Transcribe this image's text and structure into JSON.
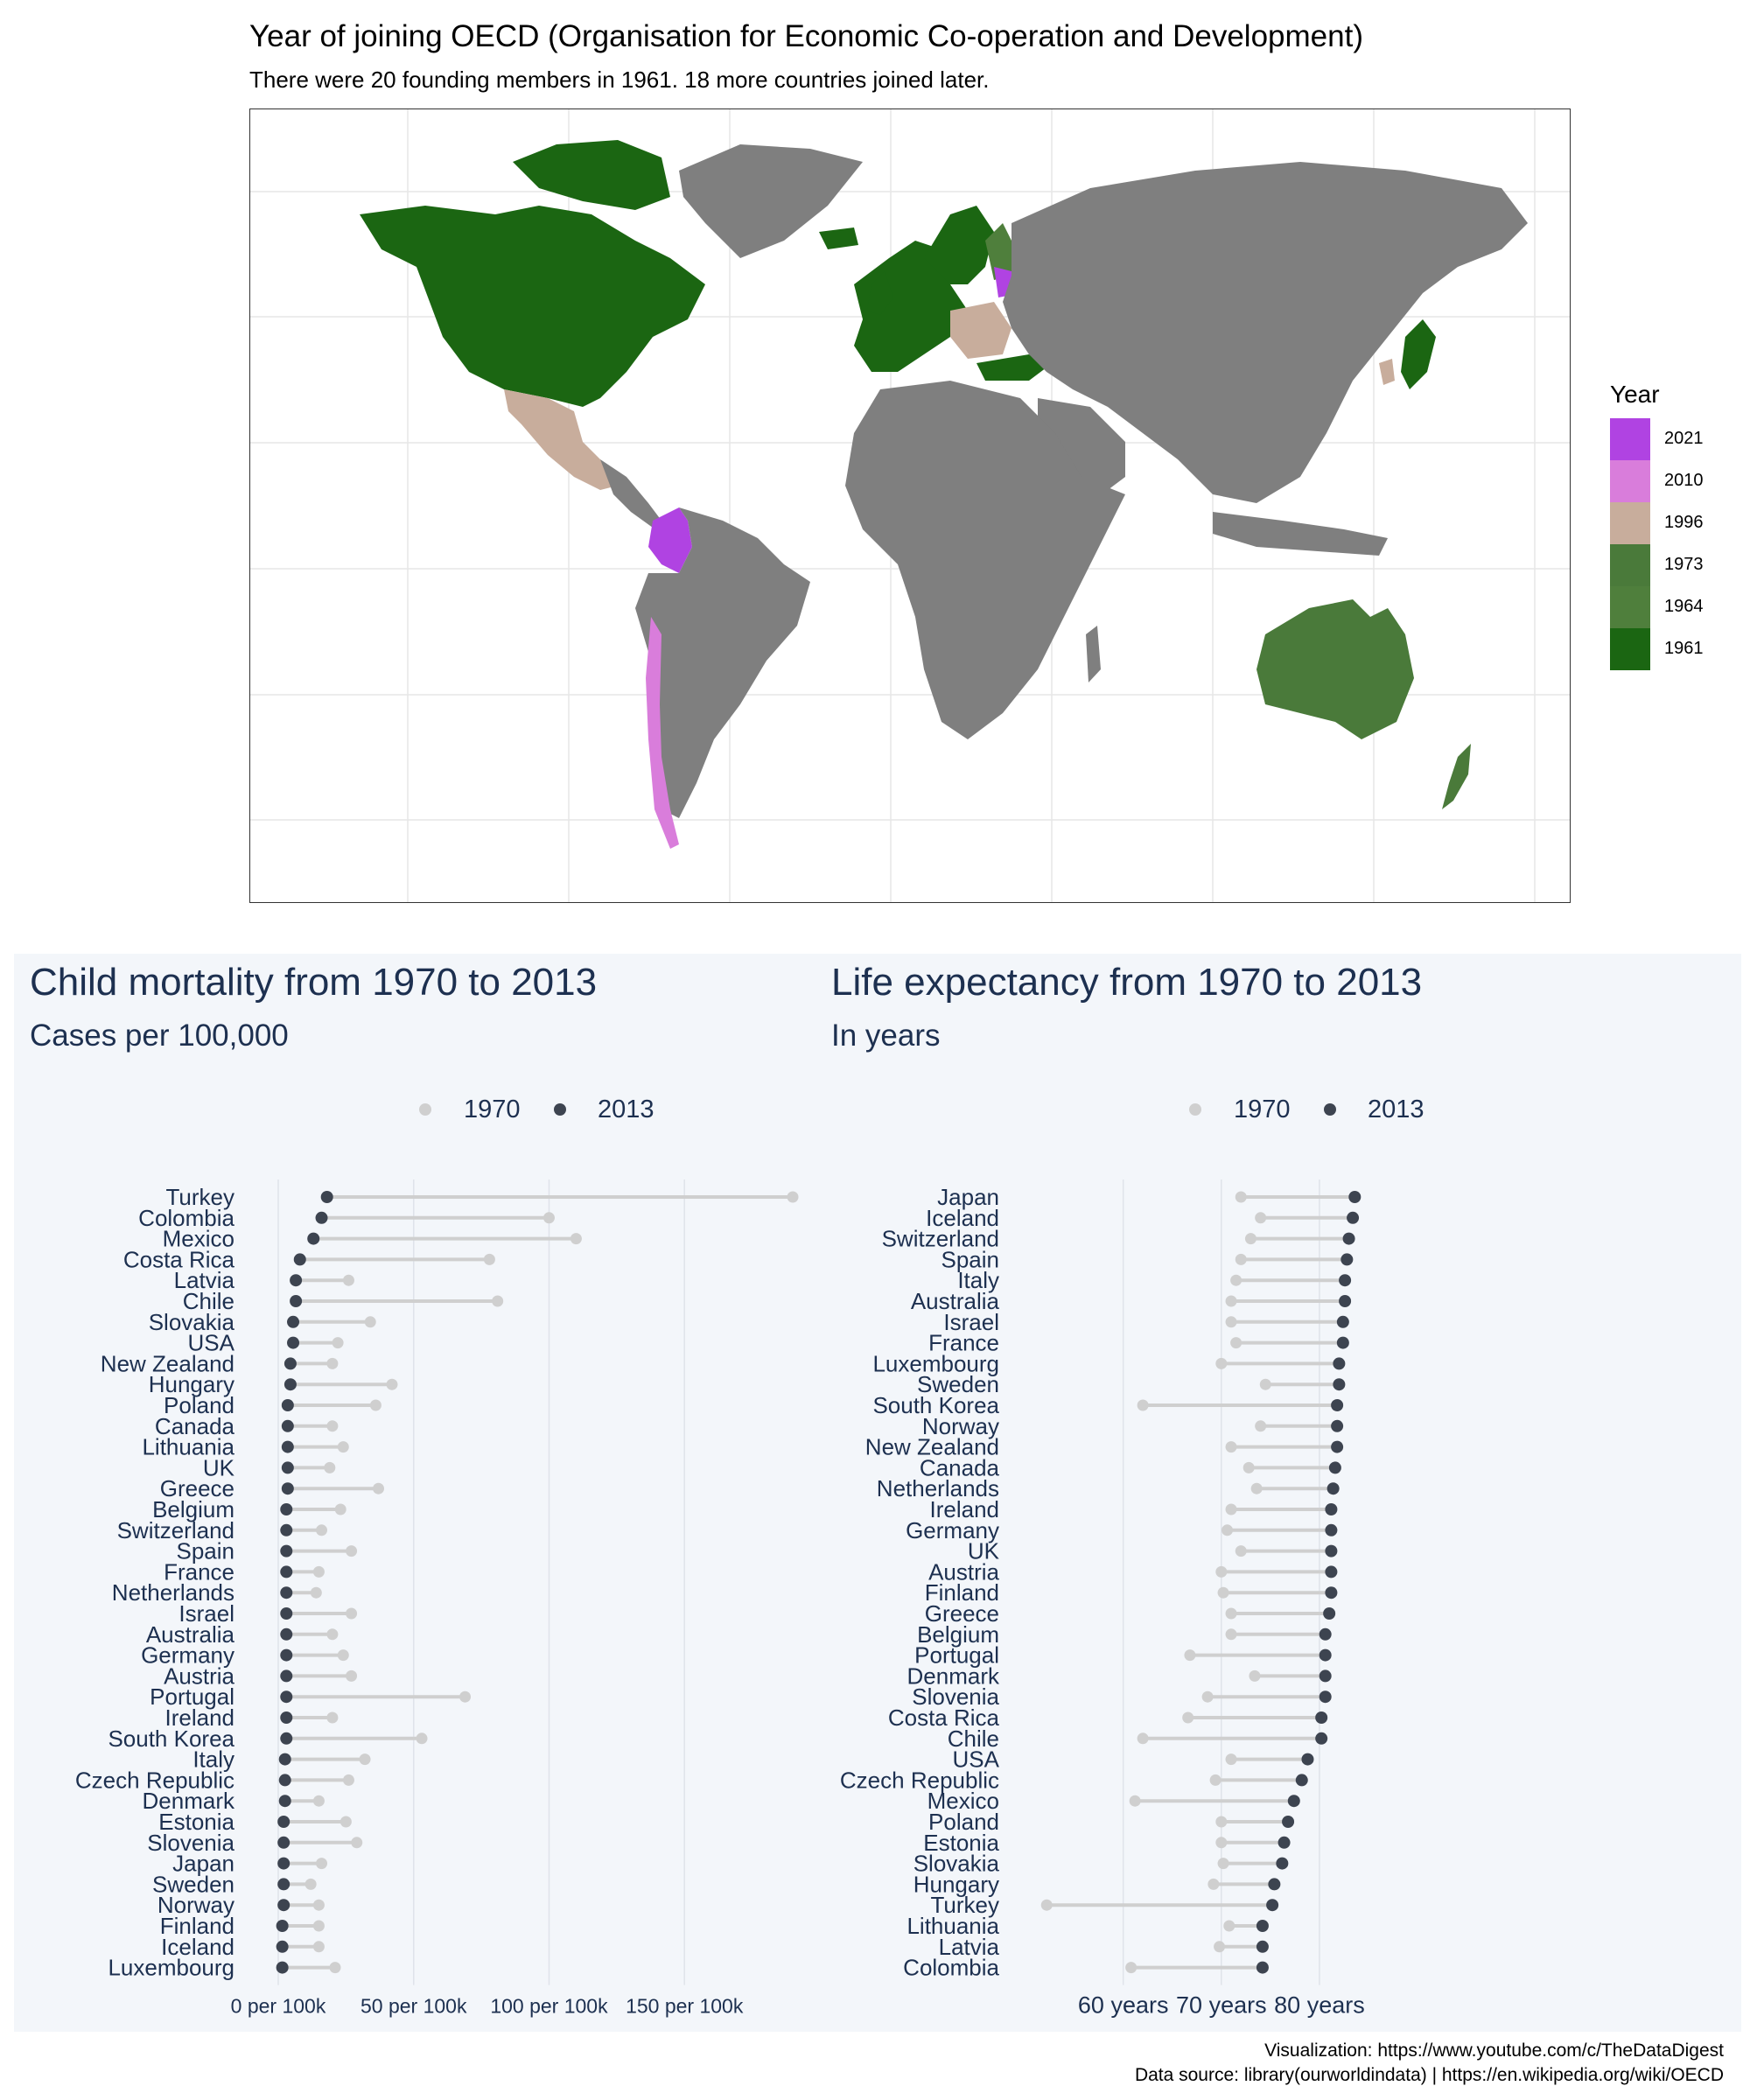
{
  "map": {
    "title": "Year of joining OECD (Organisation for Economic Co-operation and Development)",
    "subtitle": "There were 20 founding members in 1961. 18 more countries joined later.",
    "legend_title": "Year",
    "legend": [
      {
        "year": "2021",
        "color": "#b043e2"
      },
      {
        "year": "2010",
        "color": "#d97ddb"
      },
      {
        "year": "1996",
        "color": "#c8ad9c"
      },
      {
        "year": "1973",
        "color": "#4a7a3a"
      },
      {
        "year": "1964",
        "color": "#4f7f3c"
      },
      {
        "year": "1961",
        "color": "#1b6612"
      }
    ],
    "land_color": "#7f7f7f"
  },
  "credits": {
    "line1": "Visualization: https://www.youtube.com/c/TheDataDigest",
    "line2": "Data source: library(ourworldindata) | https://en.wikipedia.org/wiki/OECD"
  },
  "chart_data": [
    {
      "type": "dumbbell",
      "title": "Child mortality from 1970 to 2013",
      "subtitle": "Cases per 100,000",
      "legend": [
        "1970",
        "2013"
      ],
      "colors": {
        "1970": "#cfcfcf",
        "2013": "#3d4450"
      },
      "xlim": [
        0,
        190
      ],
      "x_ticks": [
        0,
        50,
        100,
        150
      ],
      "x_tick_labels": [
        "0 per 100k",
        "50 per 100k",
        "100 per 100k",
        "150 per 100k"
      ],
      "countries": [
        "Turkey",
        "Colombia",
        "Mexico",
        "Costa Rica",
        "Latvia",
        "Chile",
        "Slovakia",
        "USA",
        "New Zealand",
        "Hungary",
        "Poland",
        "Canada",
        "Lithuania",
        "UK",
        "Greece",
        "Belgium",
        "Switzerland",
        "Spain",
        "France",
        "Netherlands",
        "Israel",
        "Australia",
        "Germany",
        "Austria",
        "Portugal",
        "Ireland",
        "South Korea",
        "Italy",
        "Czech Republic",
        "Denmark",
        "Estonia",
        "Slovenia",
        "Japan",
        "Sweden",
        "Norway",
        "Finland",
        "Iceland",
        "Luxembourg"
      ],
      "values_1970": [
        190,
        100,
        110,
        78,
        26,
        81,
        34,
        22,
        20,
        42,
        36,
        20,
        24,
        19,
        37,
        23,
        16,
        27,
        15,
        14,
        27,
        20,
        24,
        27,
        69,
        20,
        53,
        32,
        26,
        15,
        25,
        29,
        16,
        12,
        15,
        15,
        15,
        21
      ],
      "values_2013": [
        18,
        16,
        13,
        8,
        6.5,
        6.5,
        5.5,
        5.5,
        4.5,
        4.5,
        3.5,
        3.5,
        3.5,
        3.5,
        3.5,
        3,
        3,
        3,
        3,
        3,
        3,
        3,
        3,
        3,
        3,
        3,
        3,
        2.5,
        2.5,
        2.5,
        2,
        2,
        2,
        2,
        2,
        1.5,
        1.5,
        1.5
      ]
    },
    {
      "type": "dumbbell",
      "title": "Life expectancy from 1970 to 2013",
      "subtitle": "In years",
      "legend": [
        "1970",
        "2013"
      ],
      "colors": {
        "1970": "#cfcfcf",
        "2013": "#3d4450"
      },
      "xlim": [
        52,
        85
      ],
      "x_ticks": [
        60,
        70,
        80
      ],
      "x_tick_labels": [
        "60 years",
        "70 years",
        "80 years"
      ],
      "countries": [
        "Japan",
        "Iceland",
        "Switzerland",
        "Spain",
        "Italy",
        "Australia",
        "Israel",
        "France",
        "Luxembourg",
        "Sweden",
        "South Korea",
        "Norway",
        "New Zealand",
        "Canada",
        "Netherlands",
        "Ireland",
        "Germany",
        "UK",
        "Austria",
        "Finland",
        "Greece",
        "Belgium",
        "Portugal",
        "Denmark",
        "Slovenia",
        "Costa Rica",
        "Chile",
        "USA",
        "Czech Republic",
        "Mexico",
        "Poland",
        "Estonia",
        "Slovakia",
        "Hungary",
        "Turkey",
        "Lithuania",
        "Latvia",
        "Colombia"
      ],
      "values_1970": [
        72,
        74,
        73,
        72,
        71.5,
        71,
        71,
        71.5,
        70,
        74.5,
        62,
        74,
        71,
        72.8,
        73.6,
        71,
        70.6,
        72,
        70,
        70.2,
        71,
        71,
        66.8,
        73.4,
        68.6,
        66.6,
        62,
        71,
        69.4,
        61.2,
        70,
        70,
        70.2,
        69.2,
        52.2,
        70.8,
        69.8,
        60.8
      ],
      "values_2013": [
        83.6,
        83.4,
        83,
        82.8,
        82.6,
        82.6,
        82.4,
        82.4,
        82,
        82,
        81.8,
        81.8,
        81.8,
        81.6,
        81.4,
        81.2,
        81.2,
        81.2,
        81.2,
        81.2,
        81,
        80.6,
        80.6,
        80.6,
        80.6,
        80.2,
        80.2,
        78.8,
        78.2,
        77.4,
        76.8,
        76.4,
        76.2,
        75.4,
        75.2,
        74.2,
        74.2,
        74.2
      ]
    }
  ]
}
